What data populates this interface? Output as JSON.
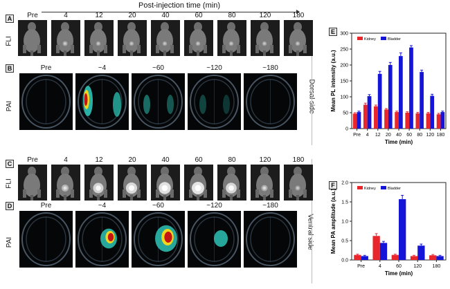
{
  "header": {
    "title": "Post-injection time (min)"
  },
  "panels": {
    "A": "A",
    "B": "B",
    "C": "C",
    "D": "D",
    "E": "E",
    "F": "F"
  },
  "rows": {
    "fli": "FLI",
    "pai": "PAI"
  },
  "sides": {
    "dorsal": "Dorsal side",
    "ventral": "Ventral side"
  },
  "fli_times": [
    "Pre",
    "4",
    "12",
    "20",
    "40",
    "60",
    "80",
    "120",
    "180"
  ],
  "pai_times": [
    "Pre",
    "~4",
    "~60",
    "~120",
    "~180"
  ],
  "fli_dorsal_signal": [
    0,
    0.1,
    0.05,
    0.05,
    0.05,
    0.05,
    0.05,
    0.05,
    0.05
  ],
  "fli_ventral_signal": [
    0,
    0.35,
    0.75,
    0.85,
    0.95,
    1.0,
    0.8,
    0.25,
    0.1
  ],
  "pai_dorsal_signal": [
    0.05,
    1.0,
    0.25,
    0.15,
    0.1
  ],
  "pai_ventral_signal": [
    0.05,
    0.6,
    1.0,
    0.4,
    0.15
  ],
  "colors": {
    "kidney": "#e8262b",
    "bladder": "#1515d8",
    "heat_low": "#2fd0c0",
    "heat_high": "#c41414"
  },
  "chart_data": [
    {
      "id": "E",
      "type": "bar",
      "categories": [
        "Pre",
        "4",
        "12",
        "20",
        "40",
        "60",
        "80",
        "120",
        "180"
      ],
      "series": [
        {
          "name": "Kidney",
          "values": [
            47,
            75,
            70,
            60,
            52,
            50,
            48,
            48,
            45
          ],
          "errors": [
            3,
            5,
            4,
            3,
            3,
            3,
            3,
            3,
            3
          ]
        },
        {
          "name": "Bladder",
          "values": [
            52,
            102,
            172,
            200,
            228,
            255,
            178,
            103,
            52
          ],
          "errors": [
            3,
            5,
            8,
            8,
            10,
            6,
            6,
            5,
            3
          ]
        }
      ],
      "xlabel": "Time (min)",
      "ylabel": "Mean PL intensity (a.u.)",
      "ylim": [
        0,
        300
      ],
      "yticks": [
        0,
        50,
        100,
        150,
        200,
        250,
        300
      ],
      "legend": "top-left"
    },
    {
      "id": "F",
      "type": "bar",
      "categories": [
        "Pre",
        "4",
        "60",
        "120",
        "180"
      ],
      "series": [
        {
          "name": "Kidney",
          "values": [
            0.13,
            0.62,
            0.13,
            0.1,
            0.12
          ],
          "errors": [
            0.02,
            0.06,
            0.02,
            0.02,
            0.02
          ]
        },
        {
          "name": "Bladder",
          "values": [
            0.1,
            0.44,
            1.57,
            0.37,
            0.1
          ],
          "errors": [
            0.02,
            0.04,
            0.1,
            0.04,
            0.02
          ]
        }
      ],
      "xlabel": "Time (min)",
      "ylabel": "Mean PA amplitude (a.u.)",
      "ylim": [
        0,
        2.0
      ],
      "yticks": [
        0.0,
        0.5,
        1.0,
        1.5,
        2.0
      ],
      "legend": "top-left"
    }
  ]
}
